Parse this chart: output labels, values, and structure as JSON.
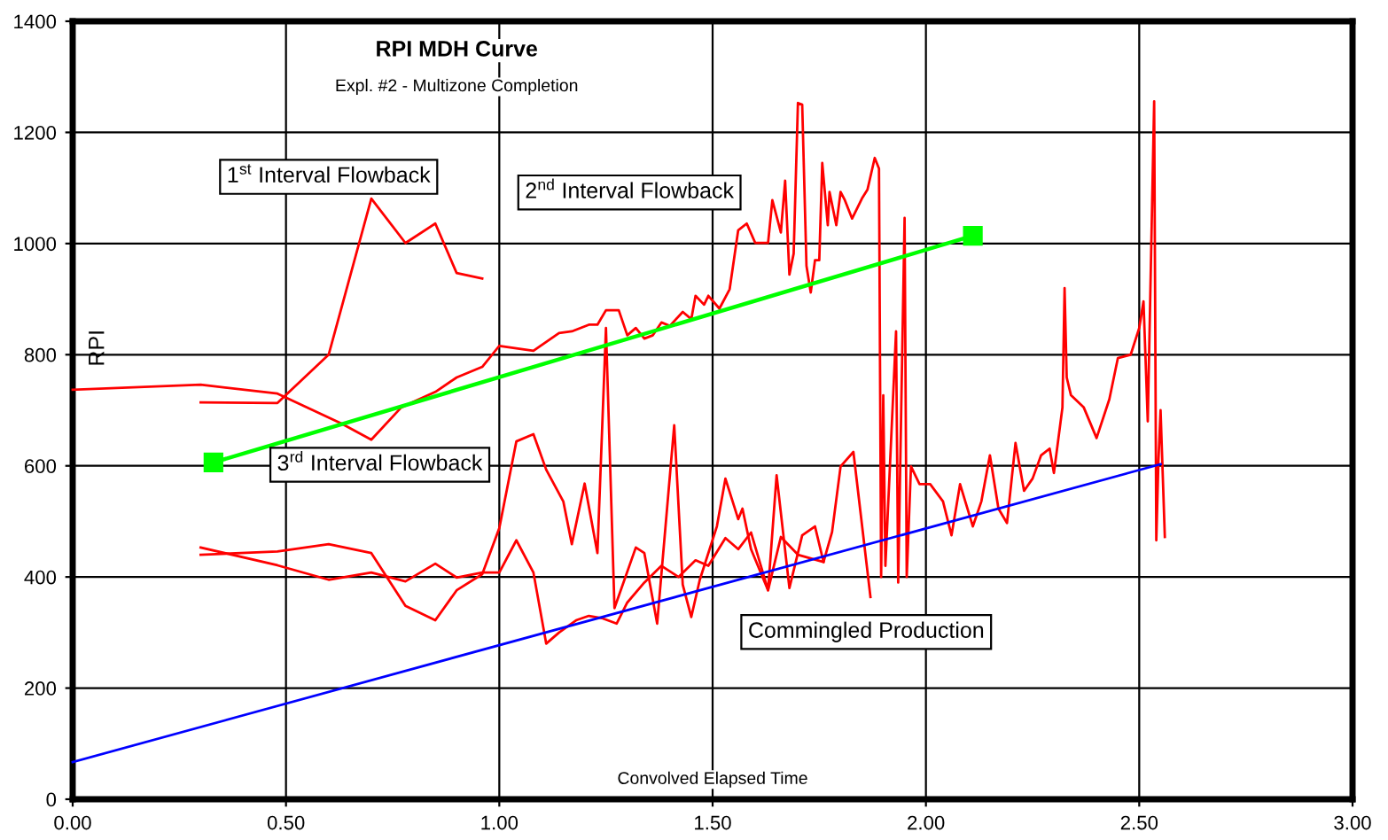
{
  "chart_data": {
    "type": "line",
    "title": "RPI MDH Curve",
    "subtitle": "Expl. #2 - Multizone Completion",
    "xlabel": "Convolved Elapsed Time",
    "ylabel": "RPI",
    "xlim": [
      0,
      3
    ],
    "xticks": [
      {
        "value": 0,
        "label": "0.00"
      },
      {
        "value": 0.5,
        "label": "0.50"
      },
      {
        "value": 1,
        "label": "1.00"
      },
      {
        "value": 1.5,
        "label": "1.50"
      },
      {
        "value": 2,
        "label": "2.00"
      },
      {
        "value": 2.5,
        "label": "2.50"
      },
      {
        "value": 3,
        "label": "3.00"
      }
    ],
    "ylim": [
      0,
      1400
    ],
    "yticks": [
      0,
      200,
      400,
      600,
      800,
      1000,
      1200,
      1400
    ],
    "grid": true,
    "line_style": "solid",
    "series": [
      {
        "color": "#ff0000",
        "marker": "none",
        "x": [
          0.3,
          0.48,
          0.6,
          0.7,
          0.78,
          0.85,
          0.9,
          0.96
        ],
        "values": [
          714,
          713,
          800,
          1081,
          1001,
          1036,
          947,
          937
        ]
      },
      {
        "color": "#ff0000",
        "marker": "none",
        "x": [
          0,
          0.3,
          0.48,
          0.63,
          0.7,
          0.77,
          0.85,
          0.9,
          0.96,
          1.0,
          1.08,
          1.14,
          1.17,
          1.21,
          1.23,
          1.25,
          1.28,
          1.3,
          1.32,
          1.34,
          1.36,
          1.38,
          1.4,
          1.43,
          1.45,
          1.46,
          1.48,
          1.49,
          1.516,
          1.54,
          1.56,
          1.58,
          1.6,
          1.63,
          1.64,
          1.66,
          1.67,
          1.68,
          1.69,
          1.7,
          1.71,
          1.72,
          1.73,
          1.74,
          1.75,
          1.757,
          1.77,
          1.774,
          1.79,
          1.8,
          1.81,
          1.827,
          1.85,
          1.863,
          1.88,
          1.89,
          1.895,
          1.9,
          1.905,
          1.93,
          1.935,
          1.95,
          1.955,
          1.965,
          1.985,
          2.01,
          2.04,
          2.06,
          2.08,
          2.11,
          2.13,
          2.15,
          2.17,
          2.19,
          2.21,
          2.23,
          2.25,
          2.27,
          2.29,
          2.3,
          2.32,
          2.325,
          2.33,
          2.34,
          2.37,
          2.4,
          2.43,
          2.45,
          2.48,
          2.5,
          2.51,
          2.52,
          2.535,
          2.54,
          2.545,
          2.55,
          2.56
        ],
        "values": [
          737,
          746,
          730,
          676,
          647,
          705,
          733,
          759,
          778,
          816,
          807,
          839,
          842,
          854,
          854,
          880,
          880,
          835,
          848,
          829,
          835,
          858,
          852,
          877,
          864,
          906,
          890,
          906,
          883,
          918,
          1024,
          1036,
          1001,
          1001,
          1078,
          1020,
          1113,
          944,
          982,
          1253,
          1250,
          960,
          912,
          970,
          970,
          1145,
          1033,
          1093,
          1033,
          1093,
          1078,
          1045,
          1081,
          1097,
          1154,
          1135,
          400,
          727,
          420,
          842,
          390,
          1046,
          400,
          599,
          567,
          567,
          536,
          475,
          567,
          491,
          536,
          619,
          523,
          497,
          641,
          555,
          577,
          619,
          631,
          587,
          705,
          920,
          759,
          727,
          705,
          650,
          720,
          794,
          800,
          848,
          896,
          680,
          1256,
          466,
          609,
          700,
          472
        ]
      },
      {
        "color": "#ff0000",
        "marker": "none",
        "x": [
          0.3,
          0.48,
          0.6,
          0.7,
          0.78,
          0.85,
          0.9,
          0.96,
          1.0,
          1.04,
          1.08,
          1.11,
          1.14,
          1.18,
          1.21,
          1.24,
          1.275,
          1.3,
          1.34,
          1.38,
          1.42,
          1.46,
          1.49,
          1.53,
          1.56,
          1.59,
          1.63,
          1.65,
          1.68,
          1.71,
          1.74,
          1.76,
          1.78,
          1.8,
          1.83,
          1.87
        ],
        "values": [
          453,
          421,
          395,
          408,
          392,
          424,
          399,
          408,
          408,
          466,
          408,
          280,
          300,
          322,
          330,
          326,
          316,
          354,
          390,
          420,
          400,
          430,
          420,
          470,
          450,
          480,
          376,
          583,
          380,
          475,
          491,
          427,
          481,
          599,
          625,
          364
        ]
      },
      {
        "color": "#ff0000",
        "marker": "none",
        "x": [
          0.3,
          0.48,
          0.6,
          0.7,
          0.78,
          0.85,
          0.9,
          0.96,
          1.0,
          1.04,
          1.08,
          1.11,
          1.15,
          1.17,
          1.2,
          1.23,
          1.25,
          1.27,
          1.32,
          1.34,
          1.37,
          1.41,
          1.43,
          1.45,
          1.47,
          1.51,
          1.53,
          1.56,
          1.57,
          1.59,
          1.63,
          1.66,
          1.7,
          1.76
        ],
        "values": [
          440,
          446,
          459,
          443,
          348,
          322,
          376,
          405,
          488,
          644,
          657,
          593,
          536,
          459,
          568,
          443,
          848,
          344,
          453,
          443,
          316,
          673,
          386,
          328,
          395,
          491,
          577,
          504,
          523,
          450,
          376,
          472,
          440,
          427
        ]
      },
      {
        "color": "#00ff00",
        "marker": "square",
        "x": [
          0.33,
          2.11
        ],
        "values": [
          606,
          1014
        ]
      },
      {
        "color": "#0000ff",
        "marker": "none",
        "x": [
          0,
          2.55
        ],
        "values": [
          67,
          603
        ]
      }
    ],
    "annotations": [
      "1$^{st}$ Interval Flowback",
      "2$^{nd}$ Interval Flowback",
      "3$^{rd}$ Interval Flowback",
      "Commingled Production"
    ]
  }
}
